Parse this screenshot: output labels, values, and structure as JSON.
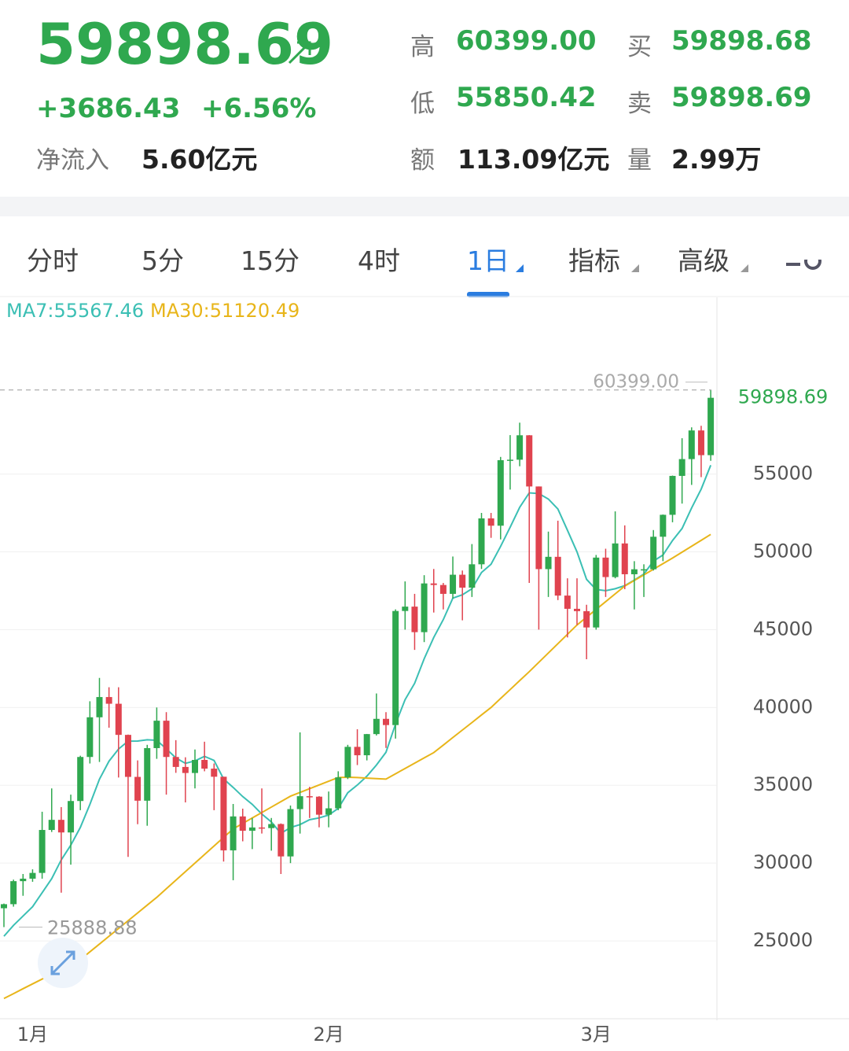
{
  "header": {
    "price": "59898.69",
    "change": "+3686.43",
    "change_pct": "+6.56%",
    "inflow_label": "净流入",
    "inflow_value": "5.60亿元",
    "stats": [
      {
        "label": "高",
        "value": "60399.00"
      },
      {
        "label": "买",
        "value": "59898.68"
      },
      {
        "label": "低",
        "value": "55850.42"
      },
      {
        "label": "卖",
        "value": "59898.69"
      },
      {
        "label": "额",
        "value": "113.09亿元"
      },
      {
        "label": "量",
        "value": "2.99万"
      }
    ]
  },
  "tabs": [
    "分时",
    "5分",
    "15分",
    "4时",
    "1日",
    "指标",
    "高级"
  ],
  "chart_data": {
    "type": "candlestick",
    "categories": [
      null,
      null,
      null,
      "1月",
      null,
      null,
      null,
      null,
      null,
      null,
      null,
      null,
      null,
      null,
      null,
      null,
      null,
      null,
      null,
      null,
      null,
      null,
      null,
      null,
      null,
      null,
      null,
      null,
      null,
      null,
      null,
      null,
      null,
      null,
      "2月",
      null,
      null,
      null,
      null,
      null,
      null,
      null,
      null,
      null,
      null,
      null,
      null,
      null,
      null,
      null,
      null,
      null,
      null,
      null,
      null,
      null,
      null,
      null,
      null,
      null,
      null,
      null,
      "3月",
      null,
      null,
      null,
      null,
      null,
      null,
      null,
      null,
      null,
      null,
      null,
      null
    ],
    "open": [
      27100,
      27360,
      28840,
      29000,
      29370,
      32130,
      32780,
      31970,
      33990,
      36820,
      39370,
      40670,
      40240,
      38240,
      35540,
      34010,
      37390,
      39150,
      36820,
      36180,
      35790,
      36630,
      36070,
      35550,
      30820,
      33000,
      32080,
      32290,
      32250,
      32510,
      30430,
      33470,
      34300,
      34270,
      33110,
      33520,
      35510,
      37470,
      36930,
      38290,
      39270,
      38870,
      46200,
      46480,
      44840,
      47970,
      47870,
      47300,
      48530,
      47700,
      49200,
      52150,
      51680,
      55890,
      55920,
      57490,
      54200,
      48890,
      49680,
      47190,
      46340,
      46190,
      45140,
      49630,
      48380,
      50540,
      48560,
      48880,
      48880,
      50970,
      52380,
      54880,
      55960,
      57800,
      56212.26
    ],
    "high": [
      27400,
      28940,
      29300,
      29600,
      33300,
      34800,
      33600,
      34400,
      36900,
      40400,
      41900,
      41300,
      41300,
      38260,
      36600,
      37600,
      40000,
      39700,
      37900,
      36800,
      37300,
      37800,
      36400,
      35550,
      33800,
      33500,
      32900,
      34800,
      32900,
      32550,
      33700,
      38400,
      34900,
      34300,
      34600,
      35900,
      37600,
      38600,
      38300,
      40900,
      39700,
      46300,
      48100,
      47300,
      48500,
      48900,
      48000,
      49700,
      48800,
      50500,
      52500,
      52500,
      56100,
      57500,
      58300,
      57500,
      54200,
      51300,
      52000,
      48300,
      48300,
      46600,
      49800,
      50200,
      52600,
      51700,
      49400,
      49200,
      51400,
      52400,
      54900,
      57300,
      58000,
      58100,
      60399
    ],
    "low": [
      25888.88,
      27200,
      27900,
      28800,
      29000,
      32000,
      28100,
      29900,
      33400,
      36400,
      36500,
      38700,
      35500,
      30400,
      32500,
      32400,
      36700,
      34400,
      35800,
      33900,
      34800,
      35900,
      33400,
      30100,
      28900,
      31400,
      30900,
      31900,
      30800,
      29300,
      30000,
      31900,
      32900,
      32300,
      32300,
      33400,
      35400,
      36300,
      36600,
      38200,
      37400,
      38000,
      45000,
      43700,
      44200,
      46100,
      46300,
      47000,
      45600,
      47100,
      48900,
      50900,
      50800,
      54000,
      55500,
      48000,
      45000,
      47100,
      46900,
      44500,
      45300,
      43100,
      45000,
      47100,
      48300,
      47600,
      46300,
      47100,
      48800,
      49400,
      51900,
      53100,
      54300,
      54800,
      55850.42
    ],
    "close": [
      27360,
      28840,
      29000,
      29370,
      32130,
      32780,
      31970,
      33990,
      36820,
      39370,
      40670,
      40240,
      38240,
      35540,
      34010,
      37390,
      39150,
      36820,
      36180,
      35790,
      36630,
      36070,
      35550,
      30820,
      33000,
      32080,
      32290,
      32250,
      32510,
      30430,
      33470,
      34300,
      34270,
      33110,
      33520,
      35510,
      37470,
      36930,
      38290,
      39270,
      38870,
      46200,
      46480,
      44840,
      47970,
      47870,
      47300,
      48530,
      47700,
      49200,
      52150,
      51680,
      55890,
      55920,
      57490,
      54200,
      48890,
      49680,
      47190,
      46340,
      46190,
      45140,
      49630,
      48380,
      50540,
      48560,
      48880,
      48880,
      50970,
      52380,
      54880,
      55960,
      57800,
      56212.26,
      59898.69
    ],
    "up_color": "#2fa84f",
    "down_color": "#e0434f",
    "series": [
      {
        "name": "MA7:55567.46",
        "color": "#3bbfb4",
        "values": [
          25300,
          26000,
          26600,
          27200,
          28100,
          29000,
          30207,
          31154,
          32294,
          33776,
          35390,
          36549,
          37329,
          37839,
          37841,
          37923,
          37891,
          37341,
          36761,
          36411,
          36567,
          36861,
          36599,
          35409,
          34863,
          34277,
          33777,
          33151,
          32643,
          31911,
          32290,
          32476,
          32789,
          32906,
          33087,
          33516,
          34521,
          35016,
          35586,
          36300,
          37123,
          38934,
          40501,
          41554,
          43131,
          44500,
          45647,
          47027,
          47241,
          47630,
          48674,
          49204,
          50350,
          51581,
          52861,
          53790,
          53746,
          53393,
          52751,
          51387,
          49997,
          48233,
          47580,
          47507,
          47630,
          47826,
          48189,
          48573,
          49406,
          49799,
          50727,
          51501,
          52821,
          54029,
          55567.46
        ]
      },
      {
        "name": "MA30:51120.49",
        "color": "#e8b51a",
        "values": [
          21300,
          21610,
          21930,
          22240,
          22550,
          22860,
          23180,
          23490,
          23800,
          24300,
          24800,
          25300,
          25800,
          26300,
          26800,
          27300,
          27800,
          28350,
          28900,
          29450,
          30000,
          30550,
          31100,
          31650,
          32200,
          32550,
          32900,
          33250,
          33600,
          33950,
          34300,
          34540,
          34780,
          35020,
          35260,
          35500,
          35520,
          35500,
          35460,
          35430,
          35400,
          35740,
          36080,
          36420,
          36760,
          37100,
          37580,
          38070,
          38550,
          39030,
          39520,
          40000,
          40580,
          41150,
          41730,
          42300,
          42900,
          43500,
          44100,
          44700,
          45300,
          45800,
          46300,
          46800,
          47300,
          47800,
          48160,
          48520,
          48880,
          49240,
          49600,
          49980,
          50360,
          50740,
          51120.49
        ]
      }
    ],
    "ylim": [
      20000,
      66250
    ],
    "yticks": [
      25000,
      30000,
      35000,
      40000,
      45000,
      50000,
      55000
    ],
    "grid": true,
    "high_marker": {
      "value": 60399,
      "label": "60399.00"
    },
    "last_price": {
      "value": 59898.69,
      "label": "59898.69"
    },
    "low_marker": {
      "value": 25888.88,
      "label": "25888.88"
    }
  }
}
